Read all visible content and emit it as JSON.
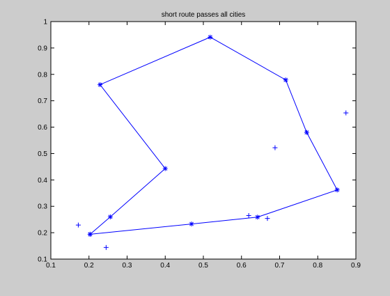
{
  "chart_data": {
    "type": "line",
    "title": "short route passes all cities",
    "xlabel": "",
    "ylabel": "",
    "xlim": [
      0.1,
      0.9
    ],
    "ylim": [
      0.1,
      1.0
    ],
    "xticks": [
      "0.1",
      "0.2",
      "0.3",
      "0.4",
      "0.5",
      "0.6",
      "0.7",
      "0.8",
      "0.9"
    ],
    "yticks": [
      "0.1",
      "0.2",
      "0.3",
      "0.4",
      "0.5",
      "0.6",
      "0.7",
      "0.8",
      "0.9",
      "1"
    ],
    "grid": false,
    "colors": {
      "figure_bg": "#cccccc",
      "axes_bg": "#ffffff",
      "series": "#0000ff",
      "axes": "#000000"
    },
    "route": {
      "marker": "*",
      "x": [
        0.203,
        0.256,
        0.4,
        0.229,
        0.518,
        0.716,
        0.771,
        0.851,
        0.642,
        0.469,
        0.203
      ],
      "y": [
        0.194,
        0.26,
        0.443,
        0.761,
        0.941,
        0.779,
        0.58,
        0.362,
        0.259,
        0.233,
        0.194
      ]
    },
    "other_cities": {
      "marker": "+",
      "x": [
        0.172,
        0.245,
        0.619,
        0.668,
        0.688,
        0.874
      ],
      "y": [
        0.229,
        0.144,
        0.265,
        0.254,
        0.522,
        0.654
      ]
    }
  }
}
